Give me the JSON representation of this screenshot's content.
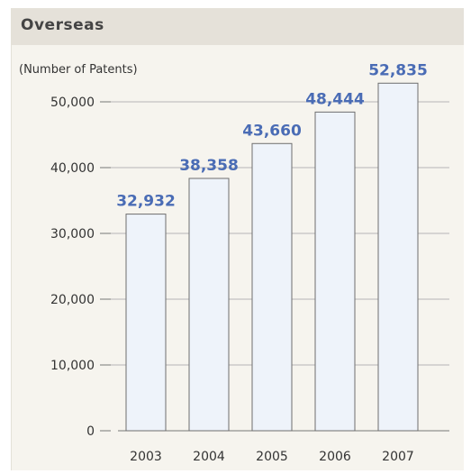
{
  "panel": {
    "title": "Overseas"
  },
  "colors": {
    "bar_fill": "#eef3fa",
    "bar_stroke": "#6e6e6e",
    "value_label": "#4a6cb5",
    "axis_text": "#333333",
    "grid": "#b5b5b5"
  },
  "chart_data": {
    "type": "bar",
    "title": "",
    "ylabel": "(Number of Patents)",
    "xlabel": "",
    "categories": [
      "2003",
      "2004",
      "2005",
      "2006",
      "2007"
    ],
    "values": [
      32932,
      38358,
      43660,
      48444,
      52835
    ],
    "value_labels": [
      "32,932",
      "38,358",
      "43,660",
      "48,444",
      "52,835"
    ],
    "ylim": [
      0,
      50000
    ],
    "yticks": [
      0,
      10000,
      20000,
      30000,
      40000,
      50000
    ],
    "ytick_labels": [
      "0",
      "10,000",
      "20,000",
      "30,000",
      "40,000",
      "50,000"
    ],
    "grid": true,
    "legend": "none"
  }
}
